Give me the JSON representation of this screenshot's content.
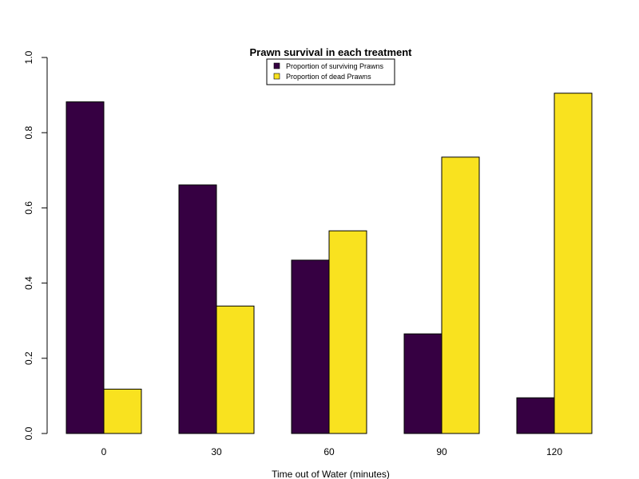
{
  "chart_data": {
    "type": "bar",
    "title": "Prawn survival in each treatment",
    "xlabel": "Time out of Water (minutes)",
    "ylabel": "",
    "categories": [
      "0",
      "30",
      "60",
      "90",
      "120"
    ],
    "series": [
      {
        "name": "Proportion of surviving Prawns",
        "color": "#360042",
        "values": [
          0.882,
          0.661,
          0.461,
          0.265,
          0.095
        ]
      },
      {
        "name": "Proportion of dead Prawns",
        "color": "#f9e21f",
        "values": [
          0.118,
          0.339,
          0.539,
          0.735,
          0.905
        ]
      }
    ],
    "ylim": [
      0,
      1
    ],
    "yticks": [
      "0.0",
      "0.2",
      "0.4",
      "0.6",
      "0.8",
      "1.0"
    ],
    "grid": false,
    "legend_position": "top-center"
  }
}
